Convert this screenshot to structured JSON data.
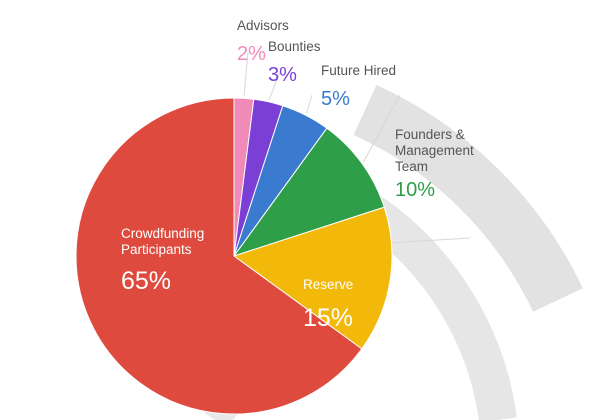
{
  "chart_data": {
    "type": "pie",
    "slices": [
      {
        "label": "Advisors",
        "value_label": "2%",
        "value": 2,
        "color": "#F08BB8"
      },
      {
        "label": "Bounties",
        "value_label": "3%",
        "value": 3,
        "color": "#7B3FD6"
      },
      {
        "label": "Future Hired",
        "value_label": "5%",
        "value": 5,
        "color": "#3A7BD0"
      },
      {
        "label": "Founders & Management Team",
        "label_lines": [
          "Founders &",
          "Management",
          "Team"
        ],
        "value_label": "10%",
        "value": 10,
        "color": "#2E9E48"
      },
      {
        "label": "Reserve",
        "value_label": "15%",
        "value": 15,
        "color": "#F2B90B"
      },
      {
        "label": "Crowdfunding Participants",
        "label_lines": [
          "Crowdfunding",
          "Participants"
        ],
        "value_label": "65%",
        "value": 65,
        "color": "#DE4A3D"
      }
    ]
  }
}
